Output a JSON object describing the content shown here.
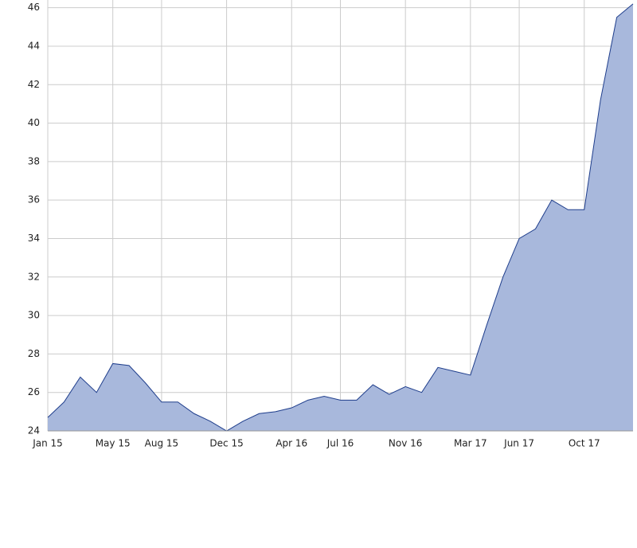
{
  "chart_data": {
    "type": "area",
    "x": [
      "2015-01",
      "2015-02",
      "2015-03",
      "2015-04",
      "2015-05",
      "2015-06",
      "2015-07",
      "2015-08",
      "2015-09",
      "2015-10",
      "2015-11",
      "2015-12",
      "2016-01",
      "2016-02",
      "2016-03",
      "2016-04",
      "2016-05",
      "2016-06",
      "2016-07",
      "2016-08",
      "2016-09",
      "2016-10",
      "2016-11",
      "2016-12",
      "2017-01",
      "2017-02",
      "2017-03",
      "2017-04",
      "2017-05",
      "2017-06",
      "2017-07",
      "2017-08",
      "2017-09",
      "2017-10",
      "2017-11",
      "2017-12",
      "2018-01"
    ],
    "values": [
      24.7,
      25.5,
      26.8,
      26.0,
      27.5,
      27.4,
      26.5,
      25.5,
      25.5,
      24.9,
      24.5,
      24.0,
      24.5,
      24.9,
      25.0,
      25.2,
      25.6,
      25.8,
      25.6,
      25.6,
      26.4,
      25.9,
      26.3,
      26.0,
      27.3,
      27.1,
      26.9,
      29.5,
      32.0,
      34.0,
      34.5,
      36.0,
      35.5,
      35.5,
      41.2,
      45.5,
      46.2
    ],
    "color": "#a8b8dc",
    "line_color": "#1f3e8c",
    "xlim": [
      "2015-01",
      "2018-01"
    ],
    "xticks": [
      {
        "value": "2015-01",
        "label": "Jan 15"
      },
      {
        "value": "2015-05",
        "label": "May 15"
      },
      {
        "value": "2015-08",
        "label": "Aug 15"
      },
      {
        "value": "2015-12",
        "label": "Dec 15"
      },
      {
        "value": "2016-04",
        "label": "Apr 16"
      },
      {
        "value": "2016-07",
        "label": "Jul 16"
      },
      {
        "value": "2016-11",
        "label": "Nov 16"
      },
      {
        "value": "2017-03",
        "label": "Mar 17"
      },
      {
        "value": "2017-06",
        "label": "Jun 17"
      },
      {
        "value": "2017-10",
        "label": "Oct 17"
      }
    ],
    "ylim": [
      24,
      46.4
    ],
    "yticks": [
      24,
      26,
      28,
      30,
      32,
      34,
      36,
      38,
      40,
      42,
      44,
      46
    ],
    "grid": true
  }
}
